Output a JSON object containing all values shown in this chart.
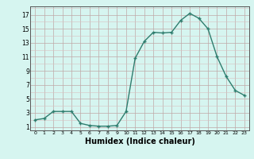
{
  "x": [
    0,
    1,
    2,
    3,
    4,
    5,
    6,
    7,
    8,
    9,
    10,
    11,
    12,
    13,
    14,
    15,
    16,
    17,
    18,
    19,
    20,
    21,
    22,
    23
  ],
  "y": [
    2,
    2.2,
    3.2,
    3.2,
    3.2,
    1.5,
    1.2,
    1.1,
    1.1,
    1.2,
    3.2,
    10.8,
    13.2,
    14.5,
    14.4,
    14.5,
    16.2,
    17.2,
    16.5,
    15.0,
    11.0,
    8.2,
    6.2,
    5.5
  ],
  "line_color": "#2e7d6e",
  "marker": "+",
  "marker_size": 3,
  "line_width": 1.0,
  "bg_color": "#d6f5f0",
  "grid_color_major": "#c0a8a8",
  "grid_color_minor": "#d8c0c0",
  "xlabel": "Humidex (Indice chaleur)",
  "xlabel_fontsize": 7,
  "ylabel_ticks": [
    1,
    3,
    5,
    7,
    9,
    11,
    13,
    15,
    17
  ],
  "xtick_labels": [
    "0",
    "1",
    "2",
    "3",
    "4",
    "5",
    "6",
    "7",
    "8",
    "9",
    "10",
    "11",
    "12",
    "13",
    "14",
    "15",
    "16",
    "17",
    "18",
    "19",
    "20",
    "21",
    "22",
    "23"
  ],
  "ylim": [
    0.5,
    18.2
  ],
  "xlim": [
    -0.5,
    23.5
  ]
}
